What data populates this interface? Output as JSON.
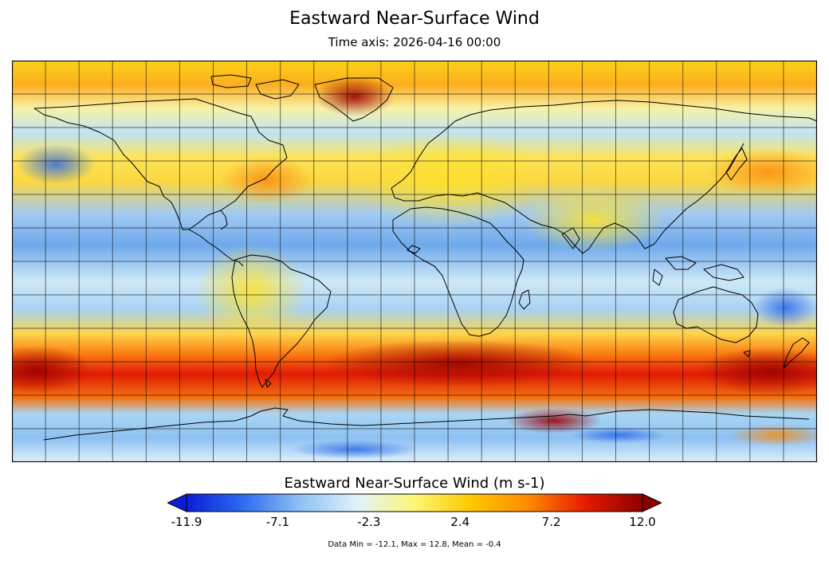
{
  "title": "Eastward Near-Surface Wind",
  "subtitle": "Time axis: 2026-04-16 00:00",
  "colorbar": {
    "title": "Eastward Near-Surface Wind (m s-1)",
    "min": -11.9,
    "max": 12.0,
    "ticks": [
      "-11.9",
      "-7.1",
      "-2.3",
      "2.4",
      "7.2",
      "12.0"
    ],
    "colors": [
      "#0a1ed6",
      "#2d6cf0",
      "#8fc1f4",
      "#dff3fb",
      "#fdf774",
      "#fdc700",
      "#fd8a00",
      "#e61a00",
      "#8b0000"
    ]
  },
  "stats": "Data Min = -12.1, Max = 12.8, Mean = -0.4",
  "map": {
    "projection": "equirectangular",
    "grid_lines": "on",
    "coastlines": "on",
    "lon_range": [
      -180,
      180
    ],
    "lat_range": [
      -90,
      90
    ]
  }
}
